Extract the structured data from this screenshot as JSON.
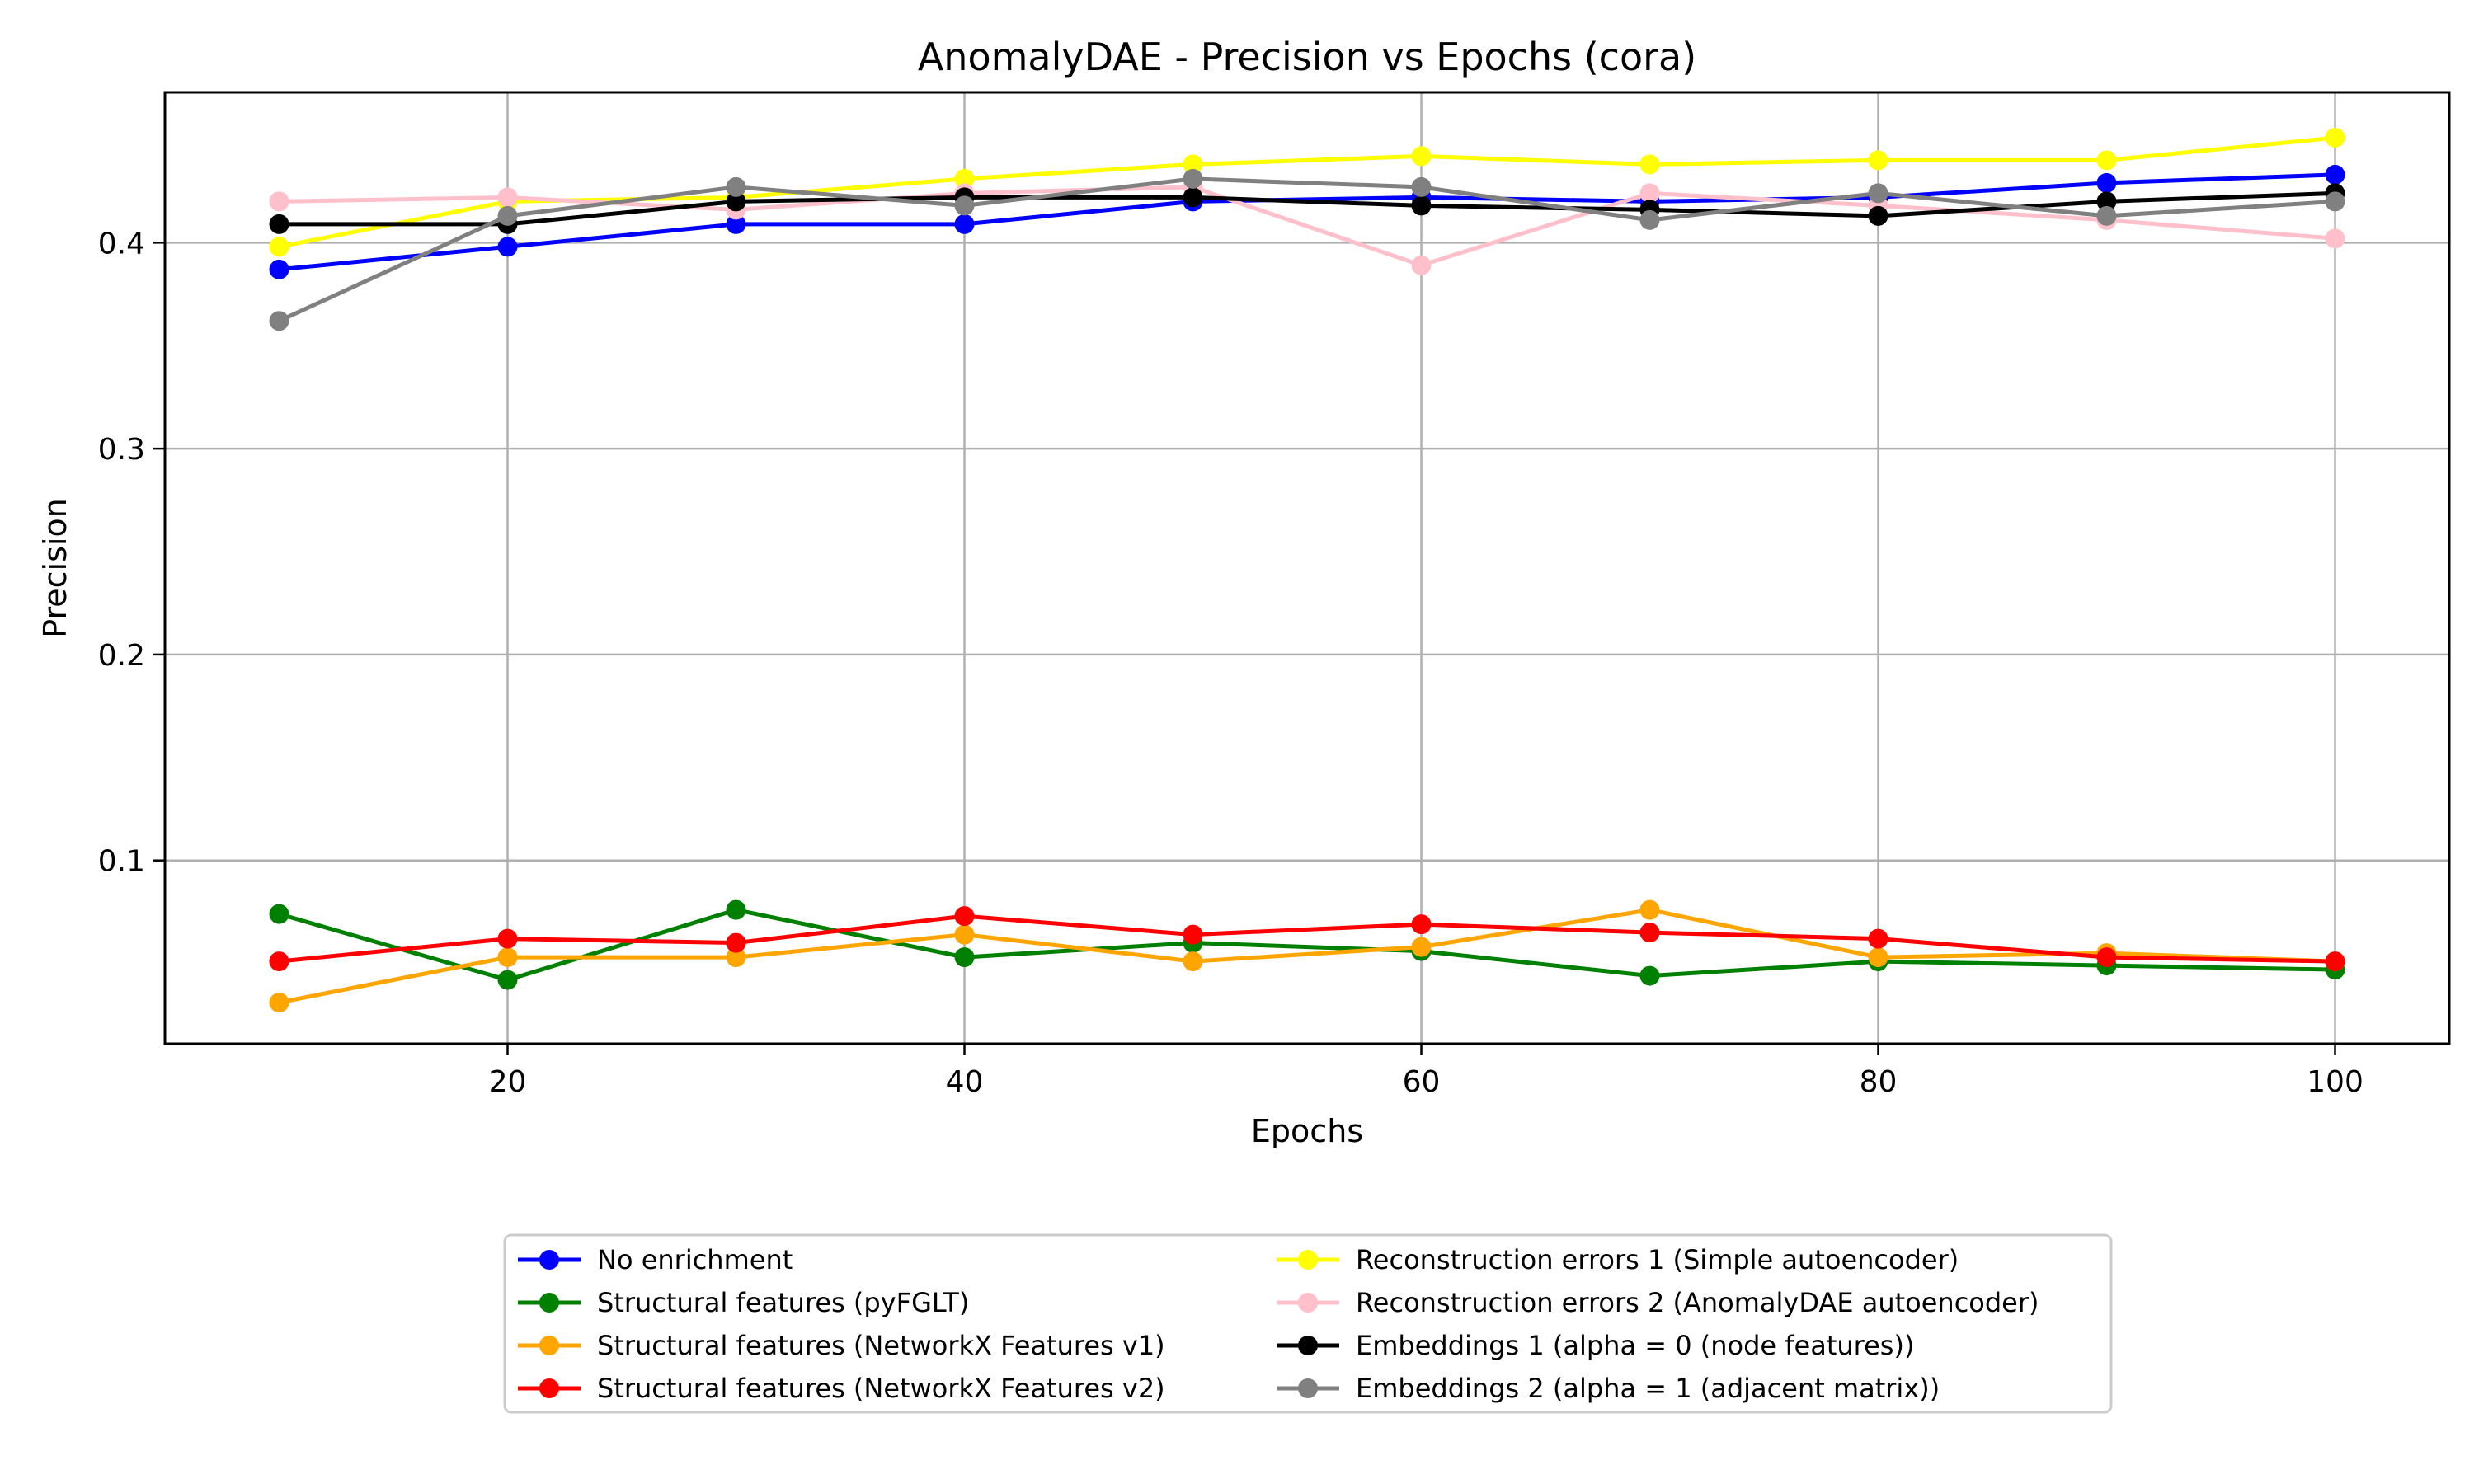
{
  "chart_data": {
    "type": "line",
    "title": "AnomalyDAE - Precision vs Epochs (cora)",
    "xlabel": "Epochs",
    "ylabel": "Precision",
    "xlim": [
      5,
      105
    ],
    "ylim": [
      0.011,
      0.473
    ],
    "x_ticks": [
      20,
      40,
      60,
      80,
      100
    ],
    "y_ticks": [
      0.1,
      0.2,
      0.3,
      0.4
    ],
    "x_tick_labels": [
      "20",
      "40",
      "60",
      "80",
      "100"
    ],
    "y_tick_labels": [
      "0.1",
      "0.2",
      "0.3",
      "0.4"
    ],
    "grid": true,
    "legend_position": "below the plot, two columns",
    "x": [
      10,
      20,
      30,
      40,
      50,
      60,
      70,
      80,
      90,
      100
    ],
    "series": [
      {
        "name": "No enrichment",
        "color": "#0000ff",
        "values": [
          0.387,
          0.398,
          0.409,
          0.409,
          0.42,
          0.422,
          0.42,
          0.422,
          0.429,
          0.433
        ]
      },
      {
        "name": "Structural features (pyFGLT)",
        "color": "#008000",
        "values": [
          0.074,
          0.042,
          0.076,
          0.053,
          0.06,
          0.056,
          0.044,
          0.051,
          0.049,
          0.047
        ]
      },
      {
        "name": "Structural features (NetworkX Features v1)",
        "color": "#ffa500",
        "values": [
          0.031,
          0.053,
          0.053,
          0.064,
          0.051,
          0.058,
          0.076,
          0.053,
          0.055,
          0.051
        ]
      },
      {
        "name": "Structural features (NetworkX Features v2)",
        "color": "#ff0000",
        "values": [
          0.051,
          0.062,
          0.06,
          0.073,
          0.064,
          0.069,
          0.065,
          0.062,
          0.053,
          0.051
        ]
      },
      {
        "name": "Reconstruction errors 1 (Simple autoencoder)",
        "color": "#ffff00",
        "values": [
          0.398,
          0.42,
          0.422,
          0.431,
          0.438,
          0.442,
          0.438,
          0.44,
          0.44,
          0.451
        ]
      },
      {
        "name": "Reconstruction errors 2 (AnomalyDAE autoencoder)",
        "color": "#ffc0cb",
        "values": [
          0.42,
          0.422,
          0.416,
          0.424,
          0.427,
          0.389,
          0.424,
          0.418,
          0.411,
          0.402
        ]
      },
      {
        "name": "Embeddings 1 (alpha = 0 (node features))",
        "color": "#000000",
        "values": [
          0.409,
          0.409,
          0.42,
          0.422,
          0.422,
          0.418,
          0.416,
          0.413,
          0.42,
          0.424
        ]
      },
      {
        "name": "Embeddings 2 (alpha = 1 (adjacent matrix))",
        "color": "#808080",
        "values": [
          0.362,
          0.413,
          0.427,
          0.418,
          0.431,
          0.427,
          0.411,
          0.424,
          0.413,
          0.42
        ]
      }
    ]
  }
}
